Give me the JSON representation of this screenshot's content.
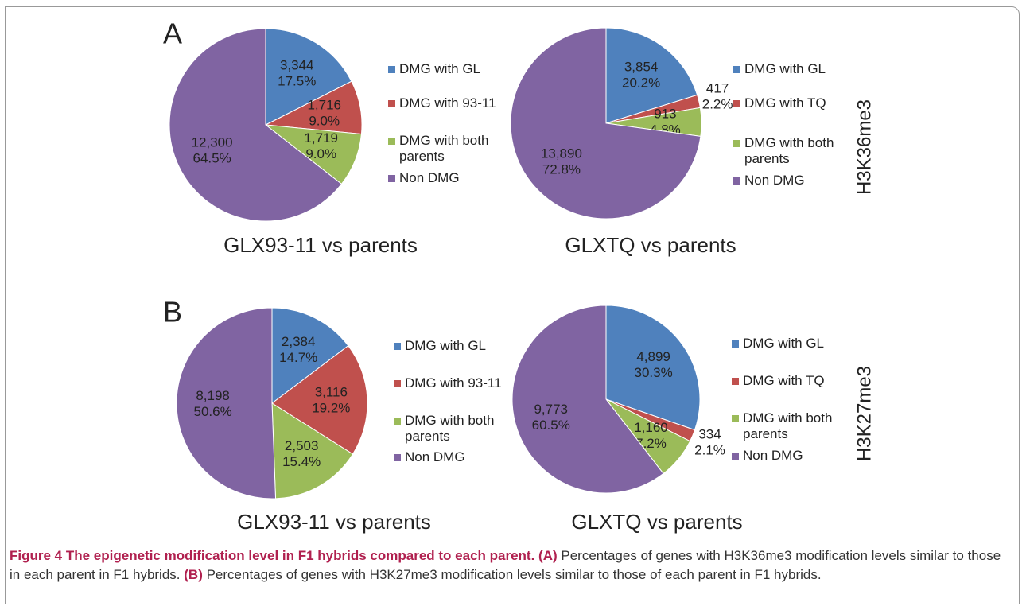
{
  "chart_data": [
    {
      "type": "pie",
      "panel": "A",
      "side_label": "H3K36me3",
      "title": "GLX93-11 vs parents",
      "labels": [
        "DMG with GL",
        "DMG with 93-11",
        "DMG with both parents",
        "Non DMG"
      ],
      "values": [
        3344,
        1716,
        1719,
        12300
      ],
      "value_labels": [
        "3,344",
        "1,716",
        "1,719",
        "12,300"
      ],
      "percents": [
        17.5,
        9.0,
        9.0,
        64.5
      ],
      "percent_labels": [
        "17.5%",
        "9.0%",
        "9.0%",
        "64.5%"
      ],
      "colors": [
        "#4f81bd",
        "#c0504d",
        "#9bbb59",
        "#8064a2"
      ]
    },
    {
      "type": "pie",
      "title": "GLXTQ vs parents",
      "labels": [
        "DMG with GL",
        "DMG with TQ",
        "DMG with both parents",
        "Non DMG"
      ],
      "values": [
        3854,
        417,
        913,
        13890
      ],
      "value_labels": [
        "3,854",
        "417",
        "913",
        "13,890"
      ],
      "percents": [
        20.2,
        2.2,
        4.8,
        72.8
      ],
      "percent_labels": [
        "20.2%",
        "2.2%",
        "4.8%",
        "72.8%"
      ],
      "colors": [
        "#4f81bd",
        "#c0504d",
        "#9bbb59",
        "#8064a2"
      ]
    },
    {
      "type": "pie",
      "panel": "B",
      "side_label": "H3K27me3",
      "title": "GLX93-11 vs parents",
      "labels": [
        "DMG with GL",
        "DMG with 93-11",
        "DMG with both parents",
        "Non DMG"
      ],
      "values": [
        2384,
        3116,
        2503,
        8198
      ],
      "value_labels": [
        "2,384",
        "3,116",
        "2,503",
        "8,198"
      ],
      "percents": [
        14.7,
        19.2,
        15.4,
        50.6
      ],
      "percent_labels": [
        "14.7%",
        "19.2%",
        "15.4%",
        "50.6%"
      ],
      "colors": [
        "#4f81bd",
        "#c0504d",
        "#9bbb59",
        "#8064a2"
      ]
    },
    {
      "type": "pie",
      "title": "GLXTQ vs parents",
      "labels": [
        "DMG with GL",
        "DMG with TQ",
        "DMG with both parents",
        "Non DMG"
      ],
      "values": [
        4899,
        334,
        1160,
        9773
      ],
      "value_labels": [
        "4,899",
        "334",
        "1,160",
        "9,773"
      ],
      "percents": [
        30.3,
        2.1,
        7.2,
        60.5
      ],
      "percent_labels": [
        "30.3%",
        "2.1%",
        "7.2%",
        "60.5%"
      ],
      "colors": [
        "#4f81bd",
        "#c0504d",
        "#9bbb59",
        "#8064a2"
      ]
    }
  ],
  "caption": {
    "title": "Figure 4 The epigenetic modification level in F1 hybrids compared to each parent.",
    "a_label": "(A)",
    "a_text": "Percentages of genes with H3K36me3 modification levels similar to those in each parent in F1 hybrids.",
    "b_label": "(B)",
    "b_text": "Percentages of genes with H3K27me3 modification levels similar to those of each parent in F1 hybrids."
  }
}
